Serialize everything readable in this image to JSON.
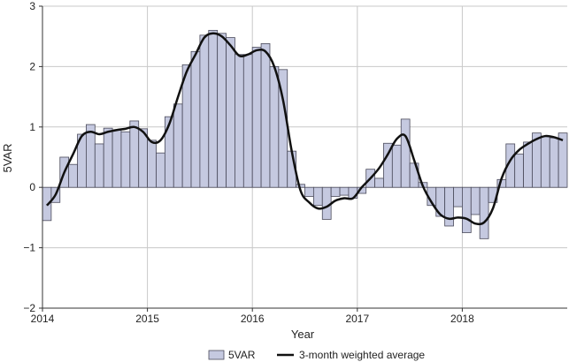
{
  "chart_data": {
    "type": "bar",
    "xlabel": "Year",
    "ylabel": "5VAR",
    "ylim": [
      -2,
      3
    ],
    "yticks": [
      "3",
      "2",
      "1",
      "0",
      "−1",
      "−2"
    ],
    "xticks": [
      "2014",
      "2015",
      "2016",
      "2017",
      "2018"
    ],
    "grid": true,
    "legend": {
      "placement": "bottom-center",
      "bar_label": "5VAR",
      "line_label": "3-month weighted average"
    },
    "colors": {
      "bar_fill": "#c5c9e0",
      "bar_stroke": "#4a4a5a",
      "line": "#111111",
      "grid": "#c8c8c8"
    },
    "x_start_date": "2014-01",
    "series": [
      {
        "name": "5VAR",
        "kind": "bar",
        "values": [
          -0.55,
          -0.25,
          0.5,
          0.38,
          0.88,
          1.04,
          0.72,
          0.98,
          0.95,
          0.92,
          1.1,
          0.97,
          0.78,
          0.57,
          1.17,
          1.38,
          2.03,
          2.25,
          2.52,
          2.6,
          2.55,
          2.48,
          2.2,
          2.2,
          2.32,
          2.38,
          2.0,
          1.95,
          0.6,
          0.05,
          -0.15,
          -0.3,
          -0.53,
          -0.15,
          -0.13,
          -0.18,
          -0.1,
          0.3,
          0.15,
          0.73,
          0.7,
          1.13,
          0.4,
          0.08,
          -0.3,
          -0.48,
          -0.64,
          -0.32,
          -0.75,
          -0.45,
          -0.85,
          -0.25,
          0.13,
          0.72,
          0.55,
          0.75,
          0.9,
          0.85,
          0.82,
          0.9
        ]
      },
      {
        "name": "3-month weighted average",
        "kind": "line",
        "values": [
          -0.3,
          -0.12,
          0.25,
          0.55,
          0.85,
          0.92,
          0.88,
          0.92,
          0.95,
          0.97,
          1.0,
          0.92,
          0.75,
          0.78,
          1.05,
          1.5,
          1.92,
          2.2,
          2.48,
          2.55,
          2.5,
          2.35,
          2.18,
          2.2,
          2.27,
          2.25,
          2.0,
          1.45,
          0.6,
          -0.05,
          -0.25,
          -0.35,
          -0.32,
          -0.22,
          -0.18,
          -0.18,
          0.0,
          0.15,
          0.32,
          0.55,
          0.8,
          0.85,
          0.45,
          0.02,
          -0.25,
          -0.45,
          -0.52,
          -0.5,
          -0.52,
          -0.6,
          -0.58,
          -0.35,
          0.15,
          0.45,
          0.62,
          0.72,
          0.8,
          0.85,
          0.83,
          0.78
        ]
      }
    ]
  }
}
